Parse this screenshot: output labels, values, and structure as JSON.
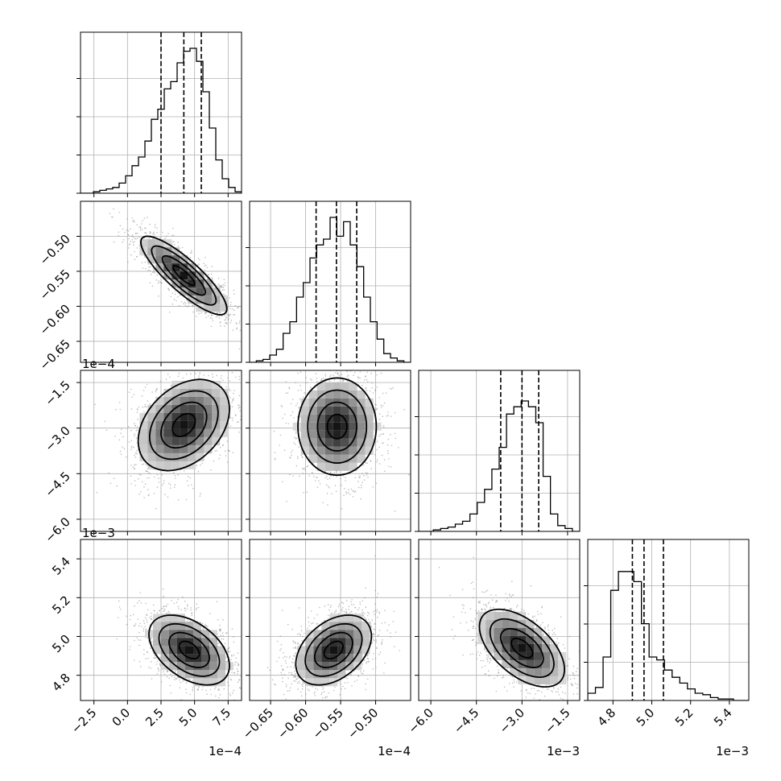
{
  "chart_data": {
    "type": "corner",
    "parameters": [
      {
        "axis_range": [
          -3.5,
          8.5
        ],
        "tick_values": [
          -2.5,
          0.0,
          2.5,
          5.0,
          7.5
        ],
        "tick_labels": [
          "−2.5",
          "0.0",
          "2.5",
          "5.0",
          "7.5"
        ],
        "offset_label": "1e−4",
        "quantiles": [
          2.5,
          4.2,
          5.5
        ],
        "histogram": [
          0,
          0,
          0.01,
          0.02,
          0.03,
          0.04,
          0.07,
          0.12,
          0.19,
          0.25,
          0.36,
          0.51,
          0.58,
          0.72,
          0.77,
          0.9,
          0.98,
          1.0,
          0.91,
          0.7,
          0.45,
          0.23,
          0.1,
          0.04,
          0.01
        ]
      },
      {
        "axis_range": [
          -0.68,
          -0.45
        ],
        "tick_values": [
          -0.65,
          -0.6,
          -0.55,
          -0.5
        ],
        "tick_labels": [
          "−0.65",
          "−0.60",
          "−0.55",
          "−0.50"
        ],
        "offset_label": "1e−4",
        "quantiles": [
          -0.585,
          -0.556,
          -0.527
        ],
        "histogram": [
          0,
          0.01,
          0.02,
          0.05,
          0.09,
          0.2,
          0.28,
          0.45,
          0.55,
          0.72,
          0.81,
          0.85,
          1.0,
          0.87,
          0.97,
          0.81,
          0.66,
          0.45,
          0.28,
          0.16,
          0.06,
          0.03,
          0.01,
          0
        ]
      },
      {
        "axis_range": [
          -6.4,
          -1.1
        ],
        "tick_values": [
          -6.0,
          -4.5,
          -3.0,
          -1.5
        ],
        "tick_labels": [
          "−6.0",
          "−4.5",
          "−3.0",
          "−1.5"
        ],
        "offset_label": "1e−3",
        "quantiles": [
          -3.7,
          -3.0,
          -2.45
        ],
        "histogram": [
          0,
          0,
          0.01,
          0.02,
          0.03,
          0.05,
          0.07,
          0.12,
          0.2,
          0.29,
          0.43,
          0.58,
          0.81,
          0.86,
          0.9,
          0.86,
          0.75,
          0.38,
          0.12,
          0.04,
          0.02,
          0
        ]
      },
      {
        "axis_range": [
          4.67,
          5.5
        ],
        "tick_values": [
          4.8,
          5.0,
          5.2,
          5.4
        ],
        "tick_labels": [
          "4.8",
          "5.0",
          "5.2",
          "5.4"
        ],
        "offset_label": "1e−3",
        "quantiles": [
          4.9,
          4.96,
          5.06
        ],
        "histogram": [
          0.05,
          0.09,
          0.3,
          0.76,
          0.89,
          0.89,
          0.82,
          0.53,
          0.3,
          0.28,
          0.21,
          0.16,
          0.12,
          0.08,
          0.05,
          0.04,
          0.02,
          0.01,
          0.01,
          0,
          0
        ]
      }
    ],
    "pairs": [
      {
        "x": 0,
        "y": 1,
        "mean": [
          4.2,
          -0.556
        ],
        "sd": [
          1.6,
          0.028
        ],
        "rho": -0.85
      },
      {
        "x": 0,
        "y": 2,
        "mean": [
          4.2,
          -2.9
        ],
        "sd": [
          1.7,
          0.75
        ],
        "rho": 0.35
      },
      {
        "x": 1,
        "y": 2,
        "mean": [
          -0.555,
          -2.95
        ],
        "sd": [
          0.028,
          0.8
        ],
        "rho": 0.0
      },
      {
        "x": 0,
        "y": 3,
        "mean": [
          4.6,
          4.93
        ],
        "sd": [
          1.5,
          0.09
        ],
        "rho": -0.45
      },
      {
        "x": 1,
        "y": 3,
        "mean": [
          -0.56,
          4.93
        ],
        "sd": [
          0.027,
          0.09
        ],
        "rho": 0.4
      },
      {
        "x": 2,
        "y": 3,
        "mean": [
          -3.0,
          4.94
        ],
        "sd": [
          0.7,
          0.1
        ],
        "rho": -0.55
      }
    ]
  }
}
